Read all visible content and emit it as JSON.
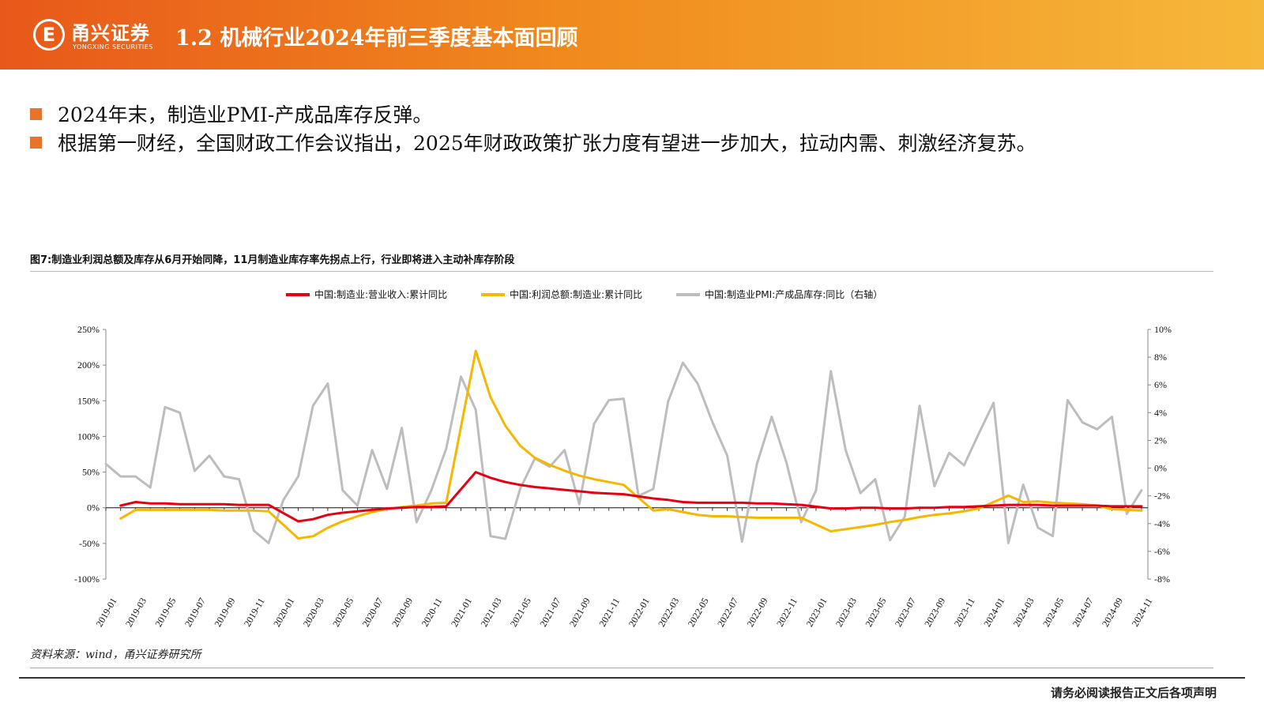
{
  "header": {
    "logo_mark": "E",
    "logo_cn": "甬兴证券",
    "logo_en": "YONGXING SECURITIES",
    "title": "1.2 机械行业2024年前三季度基本面回顾"
  },
  "bullets": [
    "2024年末，制造业PMI-产成品库存反弹。",
    "根据第一财经，全国财政工作会议指出，2025年财政政策扩张力度有望进一步加大，拉动内需、刺激经济复苏。"
  ],
  "colors": {
    "accent": "#e8732a",
    "red": "#e60012",
    "yellow": "#f5b700",
    "gray": "#bdbdbd"
  },
  "source": "资料来源：wind，甬兴证券研究所",
  "disclaimer": "请务必阅读报告正文后各项声明",
  "chart_data": {
    "type": "line",
    "title": "图7:制造业利润总额及库存从6月开始同降，11月制造业库存率先拐点上行，行业即将进入主动补库存阶段",
    "legend_position": "top-center",
    "x_ticks": [
      "2019-01",
      "2019-03",
      "2019-05",
      "2019-07",
      "2019-09",
      "2019-11",
      "2020-01",
      "2020-03",
      "2020-05",
      "2020-07",
      "2020-09",
      "2020-11",
      "2021-01",
      "2021-03",
      "2021-05",
      "2021-07",
      "2021-09",
      "2021-11",
      "2022-01",
      "2022-03",
      "2022-05",
      "2022-07",
      "2022-09",
      "2022-11",
      "2023-01",
      "2023-03",
      "2023-05",
      "2023-07",
      "2023-09",
      "2023-11",
      "2024-01",
      "2024-03",
      "2024-05",
      "2024-07",
      "2024-09",
      "2024-11"
    ],
    "y_left": {
      "min": -100,
      "max": 250,
      "step": 50,
      "unit": "%",
      "labels": [
        "-100%",
        "-50%",
        "0%",
        "50%",
        "100%",
        "150%",
        "200%",
        "250%"
      ]
    },
    "y_right": {
      "min": -8,
      "max": 10,
      "step": 2,
      "unit": "%",
      "labels": [
        "-8%",
        "-6%",
        "-4%",
        "-2%",
        "0%",
        "2%",
        "4%",
        "6%",
        "8%",
        "10%"
      ]
    },
    "series": [
      {
        "name": "中国:制造业:营业收入:累计同比",
        "axis": "left",
        "color": "#e60012",
        "points": [
          [
            "2019-02",
            3
          ],
          [
            "2019-03",
            8
          ],
          [
            "2019-04",
            6
          ],
          [
            "2019-05",
            6
          ],
          [
            "2019-06",
            5
          ],
          [
            "2019-07",
            5
          ],
          [
            "2019-08",
            5
          ],
          [
            "2019-09",
            5
          ],
          [
            "2019-10",
            4
          ],
          [
            "2019-11",
            4
          ],
          [
            "2019-12",
            4
          ],
          [
            "2020-02",
            -19
          ],
          [
            "2020-03",
            -16
          ],
          [
            "2020-04",
            -10
          ],
          [
            "2020-05",
            -7
          ],
          [
            "2020-06",
            -5
          ],
          [
            "2020-07",
            -3
          ],
          [
            "2020-08",
            -1
          ],
          [
            "2020-09",
            0
          ],
          [
            "2020-10",
            1
          ],
          [
            "2020-11",
            1
          ],
          [
            "2020-12",
            2
          ],
          [
            "2021-02",
            50
          ],
          [
            "2021-03",
            42
          ],
          [
            "2021-04",
            36
          ],
          [
            "2021-05",
            32
          ],
          [
            "2021-06",
            29
          ],
          [
            "2021-07",
            27
          ],
          [
            "2021-08",
            25
          ],
          [
            "2021-09",
            23
          ],
          [
            "2021-10",
            21
          ],
          [
            "2021-11",
            20
          ],
          [
            "2021-12",
            19
          ],
          [
            "2022-02",
            13
          ],
          [
            "2022-03",
            11
          ],
          [
            "2022-04",
            8
          ],
          [
            "2022-05",
            7
          ],
          [
            "2022-06",
            7
          ],
          [
            "2022-07",
            7
          ],
          [
            "2022-08",
            7
          ],
          [
            "2022-09",
            6
          ],
          [
            "2022-10",
            6
          ],
          [
            "2022-11",
            5
          ],
          [
            "2022-12",
            4
          ],
          [
            "2023-02",
            -1
          ],
          [
            "2023-03",
            -1
          ],
          [
            "2023-04",
            0
          ],
          [
            "2023-05",
            0
          ],
          [
            "2023-06",
            -1
          ],
          [
            "2023-07",
            -1
          ],
          [
            "2023-08",
            0
          ],
          [
            "2023-09",
            0
          ],
          [
            "2023-10",
            1
          ],
          [
            "2023-11",
            1
          ],
          [
            "2023-12",
            2
          ],
          [
            "2024-02",
            4
          ],
          [
            "2024-03",
            4
          ],
          [
            "2024-04",
            4
          ],
          [
            "2024-05",
            3
          ],
          [
            "2024-06",
            3
          ],
          [
            "2024-07",
            3
          ],
          [
            "2024-08",
            3
          ],
          [
            "2024-09",
            2
          ],
          [
            "2024-10",
            2
          ],
          [
            "2024-11",
            2
          ]
        ]
      },
      {
        "name": "中国:利润总额:制造业:累计同比",
        "axis": "left",
        "color": "#f5b700",
        "points": [
          [
            "2019-02",
            -15
          ],
          [
            "2019-03",
            -3
          ],
          [
            "2019-04",
            -3
          ],
          [
            "2019-05",
            -3
          ],
          [
            "2019-06",
            -3
          ],
          [
            "2019-07",
            -3
          ],
          [
            "2019-08",
            -3
          ],
          [
            "2019-09",
            -4
          ],
          [
            "2019-10",
            -4
          ],
          [
            "2019-11",
            -4
          ],
          [
            "2019-12",
            -5
          ],
          [
            "2020-02",
            -43
          ],
          [
            "2020-03",
            -40
          ],
          [
            "2020-04",
            -28
          ],
          [
            "2020-05",
            -19
          ],
          [
            "2020-06",
            -12
          ],
          [
            "2020-07",
            -6
          ],
          [
            "2020-08",
            -2
          ],
          [
            "2020-09",
            1
          ],
          [
            "2020-10",
            3
          ],
          [
            "2020-11",
            6
          ],
          [
            "2020-12",
            7
          ],
          [
            "2021-02",
            220
          ],
          [
            "2021-03",
            155
          ],
          [
            "2021-04",
            115
          ],
          [
            "2021-05",
            87
          ],
          [
            "2021-06",
            70
          ],
          [
            "2021-07",
            60
          ],
          [
            "2021-08",
            52
          ],
          [
            "2021-09",
            45
          ],
          [
            "2021-10",
            40
          ],
          [
            "2021-11",
            36
          ],
          [
            "2021-12",
            32
          ],
          [
            "2022-02",
            -4
          ],
          [
            "2022-03",
            -2
          ],
          [
            "2022-04",
            -6
          ],
          [
            "2022-05",
            -10
          ],
          [
            "2022-06",
            -12
          ],
          [
            "2022-07",
            -12
          ],
          [
            "2022-08",
            -13
          ],
          [
            "2022-09",
            -14
          ],
          [
            "2022-10",
            -14
          ],
          [
            "2022-11",
            -14
          ],
          [
            "2022-12",
            -14
          ],
          [
            "2023-02",
            -33
          ],
          [
            "2023-03",
            -30
          ],
          [
            "2023-04",
            -27
          ],
          [
            "2023-05",
            -24
          ],
          [
            "2023-06",
            -20
          ],
          [
            "2023-07",
            -17
          ],
          [
            "2023-08",
            -13
          ],
          [
            "2023-09",
            -10
          ],
          [
            "2023-10",
            -8
          ],
          [
            "2023-11",
            -5
          ],
          [
            "2023-12",
            -1
          ],
          [
            "2024-02",
            17
          ],
          [
            "2024-03",
            8
          ],
          [
            "2024-04",
            9
          ],
          [
            "2024-05",
            7
          ],
          [
            "2024-06",
            6
          ],
          [
            "2024-07",
            5
          ],
          [
            "2024-08",
            3
          ],
          [
            "2024-09",
            -2
          ],
          [
            "2024-10",
            -3
          ],
          [
            "2024-11",
            -4
          ]
        ]
      },
      {
        "name": "中国:制造业PMI:产成品库存:同比（右轴）",
        "axis": "right",
        "color": "#bdbdbd",
        "points": [
          [
            "2019-01",
            0.3
          ],
          [
            "2019-02",
            -0.6
          ],
          [
            "2019-03",
            -0.6
          ],
          [
            "2019-04",
            -1.4
          ],
          [
            "2019-05",
            4.4
          ],
          [
            "2019-06",
            4.0
          ],
          [
            "2019-07",
            -0.2
          ],
          [
            "2019-08",
            0.9
          ],
          [
            "2019-09",
            -0.6
          ],
          [
            "2019-10",
            -0.8
          ],
          [
            "2019-11",
            -4.5
          ],
          [
            "2019-12",
            -5.4
          ],
          [
            "2020-01",
            -2.3
          ],
          [
            "2020-02",
            -0.6
          ],
          [
            "2020-03",
            4.5
          ],
          [
            "2020-04",
            6.1
          ],
          [
            "2020-05",
            -1.6
          ],
          [
            "2020-06",
            -2.7
          ],
          [
            "2020-07",
            1.3
          ],
          [
            "2020-08",
            -1.5
          ],
          [
            "2020-09",
            2.9
          ],
          [
            "2020-10",
            -3.9
          ],
          [
            "2020-11",
            -1.6
          ],
          [
            "2020-12",
            1.4
          ],
          [
            "2021-01",
            6.6
          ],
          [
            "2021-02",
            4.2
          ],
          [
            "2021-03",
            -4.9
          ],
          [
            "2021-04",
            -5.1
          ],
          [
            "2021-05",
            -1.5
          ],
          [
            "2021-06",
            0.7
          ],
          [
            "2021-07",
            0.1
          ],
          [
            "2021-08",
            1.3
          ],
          [
            "2021-09",
            -2.6
          ],
          [
            "2021-10",
            3.2
          ],
          [
            "2021-11",
            4.9
          ],
          [
            "2021-12",
            5.0
          ],
          [
            "2022-01",
            -2.0
          ],
          [
            "2022-02",
            -1.5
          ],
          [
            "2022-03",
            4.8
          ],
          [
            "2022-04",
            7.6
          ],
          [
            "2022-05",
            6.1
          ],
          [
            "2022-06",
            3.3
          ],
          [
            "2022-07",
            0.9
          ],
          [
            "2022-08",
            -5.3
          ],
          [
            "2022-09",
            0.3
          ],
          [
            "2022-10",
            3.7
          ],
          [
            "2022-11",
            0.4
          ],
          [
            "2022-12",
            -3.9
          ],
          [
            "2023-01",
            -1.6
          ],
          [
            "2023-02",
            7.0
          ],
          [
            "2023-03",
            1.3
          ],
          [
            "2023-04",
            -1.8
          ],
          [
            "2023-05",
            -0.8
          ],
          [
            "2023-06",
            -5.2
          ],
          [
            "2023-07",
            -3.5
          ],
          [
            "2023-08",
            4.5
          ],
          [
            "2023-09",
            -1.3
          ],
          [
            "2023-10",
            1.1
          ],
          [
            "2023-11",
            0.2
          ],
          [
            "2023-12",
            2.5
          ],
          [
            "2024-01",
            4.7
          ],
          [
            "2024-02",
            -5.4
          ],
          [
            "2024-03",
            -1.2
          ],
          [
            "2024-04",
            -4.3
          ],
          [
            "2024-05",
            -4.9
          ],
          [
            "2024-06",
            4.9
          ],
          [
            "2024-07",
            3.3
          ],
          [
            "2024-08",
            2.8
          ],
          [
            "2024-09",
            3.7
          ],
          [
            "2024-10",
            -3.3
          ],
          [
            "2024-11",
            -1.6
          ]
        ]
      }
    ]
  }
}
